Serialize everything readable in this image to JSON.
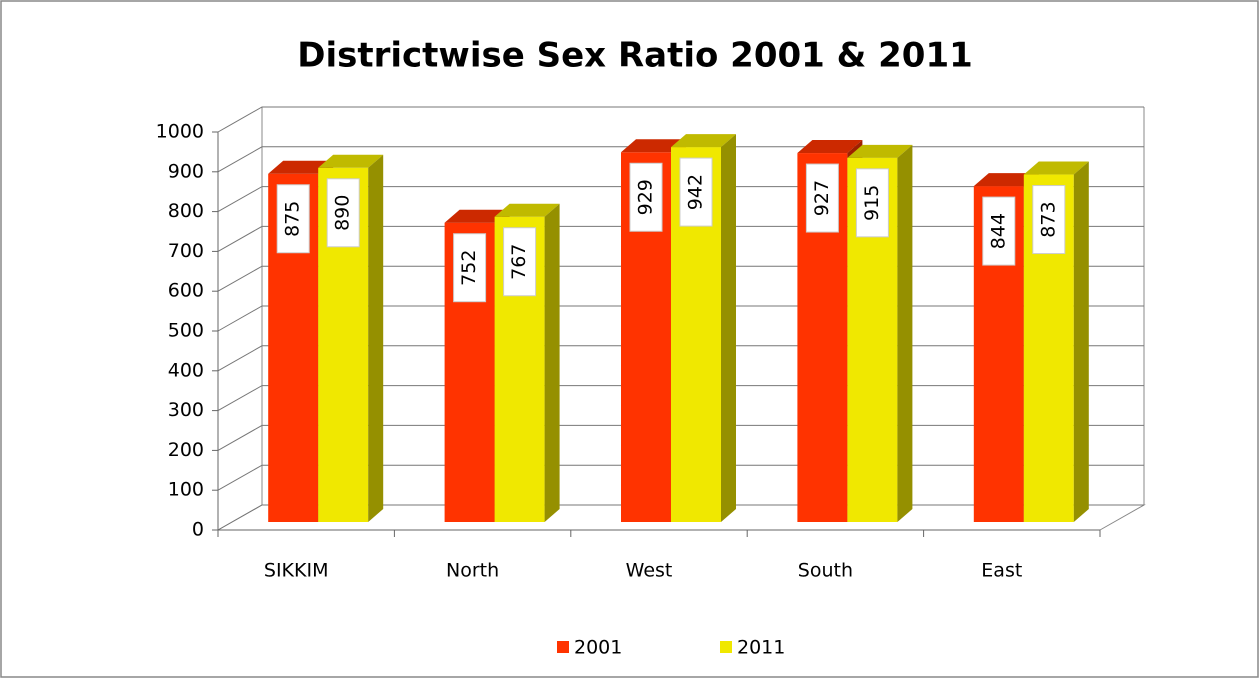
{
  "chart_data": {
    "type": "bar3d",
    "title": "Districtwise Sex Ratio 2001 & 2011",
    "categories": [
      "SIKKIM",
      "North",
      "West",
      "South",
      "East"
    ],
    "series": [
      {
        "name": "2001",
        "color": "#ff3300",
        "values": [
          875,
          752,
          929,
          927,
          844
        ]
      },
      {
        "name": "2011",
        "color": "#f0e800",
        "values": [
          890,
          767,
          942,
          915,
          873
        ]
      }
    ],
    "ylim": [
      0,
      1000
    ],
    "yticks": [
      0,
      100,
      200,
      300,
      400,
      500,
      600,
      700,
      800,
      900,
      1000
    ],
    "grid": true,
    "legend": "bottom"
  }
}
